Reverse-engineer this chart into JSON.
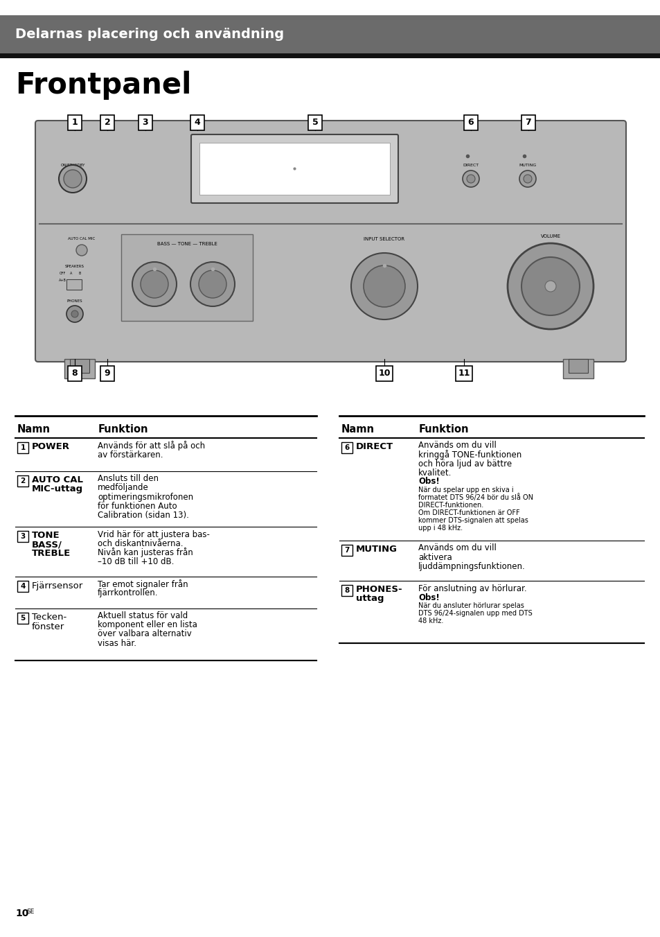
{
  "page_bg": "#ffffff",
  "header_bg": "#6b6b6b",
  "header_text": "Delarnas placering och användning",
  "header_text_color": "#ffffff",
  "header_bar_color": "#111111",
  "title": "Frontpanel",
  "panel_color": "#b8b8b8",
  "panel_border": "#555555",
  "table_left": {
    "headers": [
      "Namn",
      "Funktion"
    ],
    "rows": [
      {
        "num": "1",
        "name": "POWER",
        "name_bold": true,
        "func_lines": [
          "Används för att slå på och",
          "av förstärkaren."
        ]
      },
      {
        "num": "2",
        "name": "AUTO CAL\nMIC-uttag",
        "name_bold": true,
        "func_lines": [
          "Ansluts till den",
          "medföljande",
          "optimeringsmikrofonen",
          "för funktionen Auto",
          "Calibration (sidan 13)."
        ]
      },
      {
        "num": "3",
        "name": "TONE\nBASS/\nTREBLE",
        "name_bold": true,
        "func_lines": [
          "Vrid här för att justera bas-",
          "och diskantnivåerna.",
          "Nivån kan justeras från",
          "–10 dB till +10 dB."
        ]
      },
      {
        "num": "4",
        "name": "Fjärrsensor",
        "name_bold": false,
        "func_lines": [
          "Tar emot signaler från",
          "fjärrkontrollen."
        ]
      },
      {
        "num": "5",
        "name": "Tecken-\nfönster",
        "name_bold": false,
        "func_lines": [
          "Aktuell status för vald",
          "komponent eller en lista",
          "över valbara alternativ",
          "visas här."
        ]
      }
    ]
  },
  "table_right": {
    "headers": [
      "Namn",
      "Funktion"
    ],
    "rows": [
      {
        "num": "6",
        "name": "DIRECT",
        "name_bold": true,
        "func_lines": [
          "Används om du vill",
          "kringgå TONE-funktionen",
          "och höra ljud av bättre",
          "kvalitet."
        ],
        "obs_lines": [
          "När du spelar upp en skiva i",
          "formatet DTS 96/24 bör du slå ON",
          "DIRECT-funktionen.",
          "Om DIRECT-funktionen är OFF",
          "kommer DTS-signalen att spelas",
          "upp i 48 kHz."
        ]
      },
      {
        "num": "7",
        "name": "MUTING",
        "name_bold": true,
        "func_lines": [
          "Används om du vill",
          "aktivera",
          "ljuddämpningsfunktionen."
        ],
        "obs_lines": []
      },
      {
        "num": "8",
        "name": "PHONES-\nuttag",
        "name_bold": true,
        "func_lines": [
          "För anslutning av hörlurar."
        ],
        "obs_lines": [
          "När du ansluter hörlurar spelas",
          "DTS 96/24-signalen upp med DTS",
          "48 kHz."
        ]
      }
    ]
  },
  "footer_num": "10",
  "footer_sup": "SE"
}
